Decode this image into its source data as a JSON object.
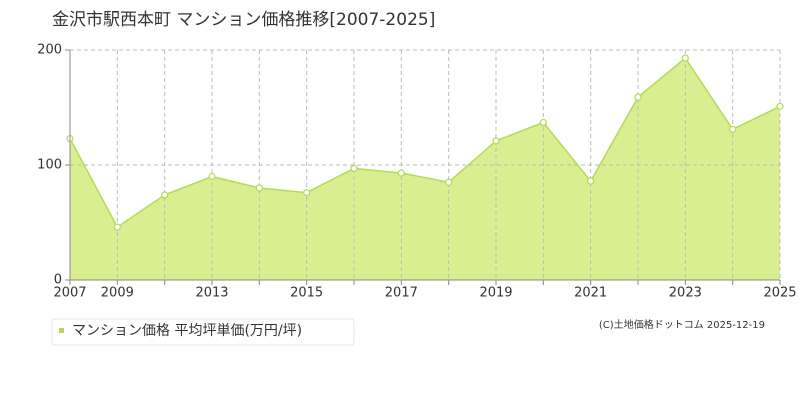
{
  "chart_data": {
    "type": "area",
    "title": "金沢市駅西本町 マンション価格推移[2007-2025]",
    "categories": [
      "2007",
      "2009",
      null,
      "2013",
      null,
      "2015",
      null,
      "2017",
      null,
      "2019",
      null,
      "2021",
      null,
      "2023",
      null,
      "2025"
    ],
    "series": [
      {
        "name": "マンション価格 平均坪単価(万円/坪)",
        "color": "#b5da55",
        "fill": "#d9ed91",
        "values": [
          123,
          46,
          74,
          90,
          80,
          76,
          97,
          93,
          85,
          121,
          137,
          86,
          159,
          193,
          131,
          151
        ]
      }
    ],
    "ylim": [
      0,
      200
    ],
    "yticks": [
      0,
      100,
      200
    ],
    "grid": true,
    "copyright": "(C)土地価格ドットコム 2025-12-19"
  }
}
